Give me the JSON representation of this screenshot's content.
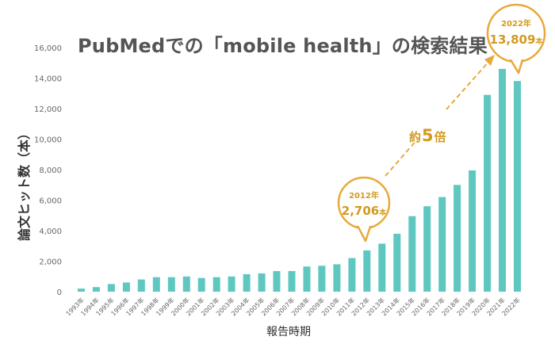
{
  "title": "PubMedでの「mobile health」の検索結果",
  "colors": {
    "bar": "#5ec8c0",
    "accent": "#e8a93a",
    "accent_text": "#d39a1e",
    "axis_text": "#666666"
  },
  "annotations": {
    "callout_2012": {
      "year": "2012年",
      "value": "2,706",
      "unit": "本"
    },
    "callout_2022": {
      "year": "2022年",
      "value": "13,809",
      "unit": "本"
    },
    "multiplier": {
      "prefix": "約",
      "number": "5",
      "suffix": "倍"
    }
  },
  "chart_data": {
    "type": "bar",
    "title": "PubMedでの「mobile health」の検索結果",
    "xlabel": "報告時期",
    "ylabel": "論文ヒット数（本）",
    "ylim": [
      0,
      16000
    ],
    "yticks": [
      "0",
      "2,000",
      "4,000",
      "6,000",
      "8,000",
      "10,000",
      "12,000",
      "14,000",
      "16,000"
    ],
    "ytick_values": [
      0,
      2000,
      4000,
      6000,
      8000,
      10000,
      12000,
      14000,
      16000
    ],
    "grid": false,
    "categories": [
      "1993年",
      "1994年",
      "1995年",
      "1996年",
      "1997年",
      "1998年",
      "1999年",
      "2000年",
      "2001年",
      "2002年",
      "2003年",
      "2004年",
      "2005年",
      "2006年",
      "2007年",
      "2008年",
      "2009年",
      "2010年",
      "2011年",
      "2012年",
      "2013年",
      "2014年",
      "2015年",
      "2016年",
      "2017年",
      "2018年",
      "2019年",
      "2020年",
      "2021年",
      "2022年"
    ],
    "values": [
      200,
      300,
      500,
      600,
      800,
      950,
      950,
      1000,
      900,
      950,
      1000,
      1150,
      1200,
      1350,
      1350,
      1650,
      1700,
      1800,
      2200,
      2706,
      3150,
      3800,
      4950,
      5600,
      6200,
      7000,
      7950,
      12900,
      14600,
      13809
    ]
  }
}
